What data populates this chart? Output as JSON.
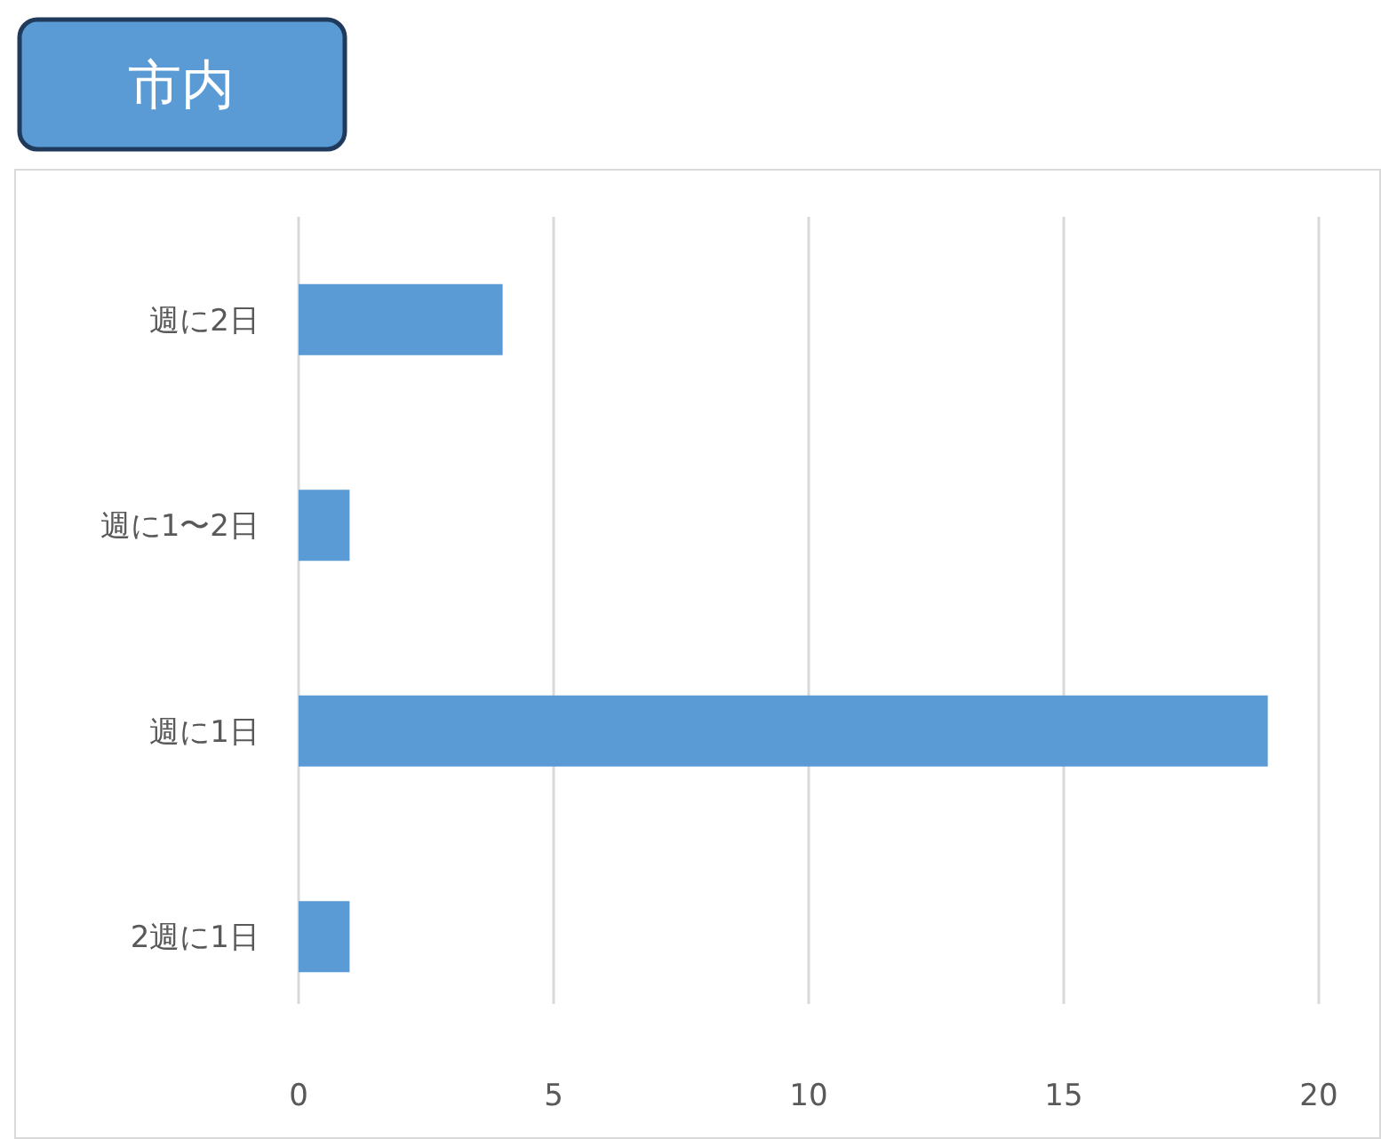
{
  "chart_data": {
    "type": "bar",
    "orientation": "horizontal",
    "title": "市内",
    "categories": [
      "週に2日",
      "週に1〜2日",
      "週に1日",
      "2週に1日"
    ],
    "values": [
      4,
      1,
      19,
      1
    ],
    "color": "#5b9bd5",
    "xlim": [
      0,
      20
    ],
    "xticks": [
      0,
      5,
      10,
      15,
      20
    ],
    "grid": "x"
  }
}
